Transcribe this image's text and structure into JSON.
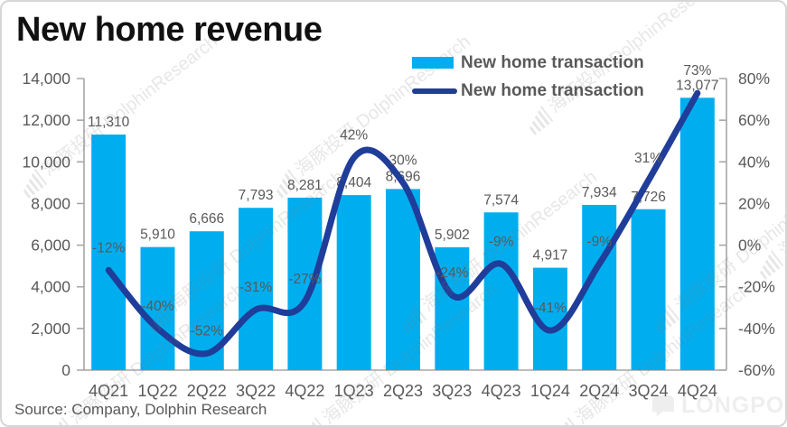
{
  "chart_data": {
    "type": "combo",
    "title": "New home revenue",
    "source": "Source: Company, Dolphin Research",
    "categories": [
      "4Q21",
      "1Q22",
      "2Q22",
      "3Q22",
      "4Q22",
      "1Q23",
      "2Q23",
      "3Q23",
      "4Q23",
      "1Q24",
      "2Q24",
      "3Q24",
      "4Q24"
    ],
    "series": [
      {
        "name": "New home transaction",
        "type": "bar",
        "axis": "left",
        "color": "#00AEEF",
        "values": [
          11310,
          5910,
          6666,
          7793,
          8281,
          8404,
          8696,
          5902,
          7574,
          4917,
          7934,
          7726,
          13077
        ],
        "labels": [
          "11,310",
          "5,910",
          "6,666",
          "7,793",
          "8,281",
          "8,404",
          "8,696",
          "5,902",
          "7,574",
          "4,917",
          "7,934",
          "7,726",
          "13,077"
        ]
      },
      {
        "name": "New home transaction",
        "type": "line",
        "axis": "right",
        "color": "#1F3D99",
        "values": [
          -12,
          -40,
          -52,
          -31,
          -27,
          42,
          30,
          -24,
          -9,
          -41,
          -9,
          31,
          73
        ],
        "labels": [
          "-12%",
          "-40%",
          "-52%",
          "-31%",
          "-27%",
          "42%",
          "30%",
          "-24%",
          "-9%",
          "-41%",
          "-9%",
          "31%",
          "73%"
        ]
      }
    ],
    "left_axis": {
      "min": 0,
      "max": 14000,
      "tick_labels": [
        "0",
        "2,000",
        "4,000",
        "6,000",
        "8,000",
        "10,000",
        "12,000",
        "14,000"
      ]
    },
    "right_axis": {
      "min": -60,
      "max": 80,
      "tick_labels": [
        "-60%",
        "-40%",
        "-20%",
        "0%",
        "20%",
        "40%",
        "60%",
        "80%"
      ]
    },
    "grid": false,
    "legend_position": "top-right",
    "axis_color": "#A6A6A6",
    "label_color": "#595959"
  },
  "watermark": {
    "dolphin": "海豚投研 DolphinResearch",
    "longport": "LONGPORT"
  }
}
